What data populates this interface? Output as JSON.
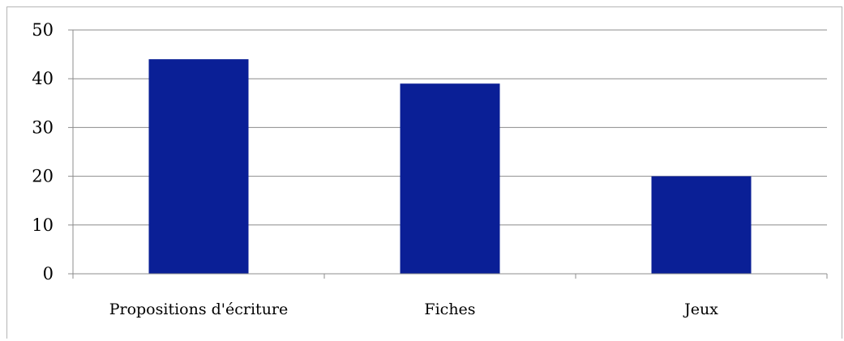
{
  "chart_data": {
    "type": "bar",
    "categories": [
      "Propositions d'écriture",
      "Fiches",
      "Jeux"
    ],
    "values": [
      44,
      39,
      20
    ],
    "ylim": [
      0,
      50
    ],
    "yticks": [
      0,
      10,
      20,
      30,
      40,
      50
    ],
    "grid": true,
    "legend": "none",
    "bar_color": "#0a1f96"
  }
}
